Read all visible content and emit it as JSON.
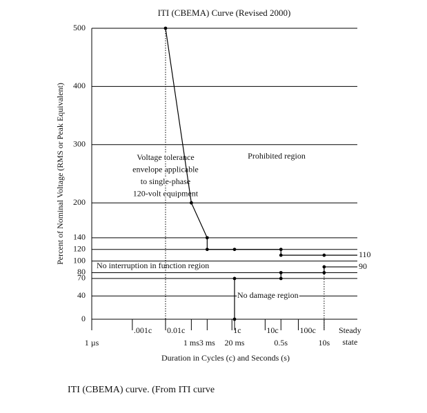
{
  "chart_data": {
    "type": "line",
    "title": "ITI (CBEMA) Curve (Revised 2000)",
    "y_label": "Percent of Nominal Voltage (RMS or Peak Equivalent)",
    "x_label": "Duration in Cycles (c) and Seconds (s)",
    "caption": "ITI (CBEMA) curve. (From ITI curve",
    "log_x": true,
    "grid": true,
    "color": "#000000",
    "xlim": [
      1e-06,
      100
    ],
    "ylim": [
      0,
      500
    ],
    "yticks": [
      0,
      40,
      70,
      80,
      100,
      120,
      140,
      200,
      300,
      400,
      500
    ],
    "xticks": [
      {
        "value": 1e-06,
        "label": "1 µs"
      },
      {
        "value": 0.001,
        "label": "1 ms"
      },
      {
        "value": 0.003,
        "label": "3 ms"
      },
      {
        "value": 0.02,
        "label": "20 ms"
      },
      {
        "value": 0.5,
        "label": "0.5s"
      },
      {
        "value": 10,
        "label": "10s"
      }
    ],
    "xticks_cycles": [
      {
        "value": 1.67e-05,
        "label": ".001c"
      },
      {
        "value": 0.000167,
        "label": "0.01c"
      },
      {
        "value": 0.0167,
        "label": "1c"
      },
      {
        "value": 0.167,
        "label": "10c"
      },
      {
        "value": 1.67,
        "label": "100c"
      },
      {
        "value": 60,
        "label": "Steady state"
      }
    ],
    "series": [
      {
        "x": [
          0.000167,
          0.001,
          0.003,
          0.003,
          0.02,
          0.5,
          0.5,
          10,
          100
        ],
        "values": [
          500,
          200,
          140,
          120,
          120,
          120,
          110,
          110,
          110
        ]
      },
      {
        "x": [
          0.02,
          0.02,
          0.5,
          0.5,
          10,
          10,
          100
        ],
        "values": [
          0,
          70,
          70,
          80,
          80,
          90,
          90
        ]
      }
    ],
    "annotations": {
      "envelope": [
        "Voltage tolerance",
        "envelope applicable",
        "to single-phase",
        "120-volt equipment"
      ],
      "prohibited": "Prohibited region",
      "no_interruption": "No interruption in function region",
      "no_damage": "No damage region"
    }
  }
}
